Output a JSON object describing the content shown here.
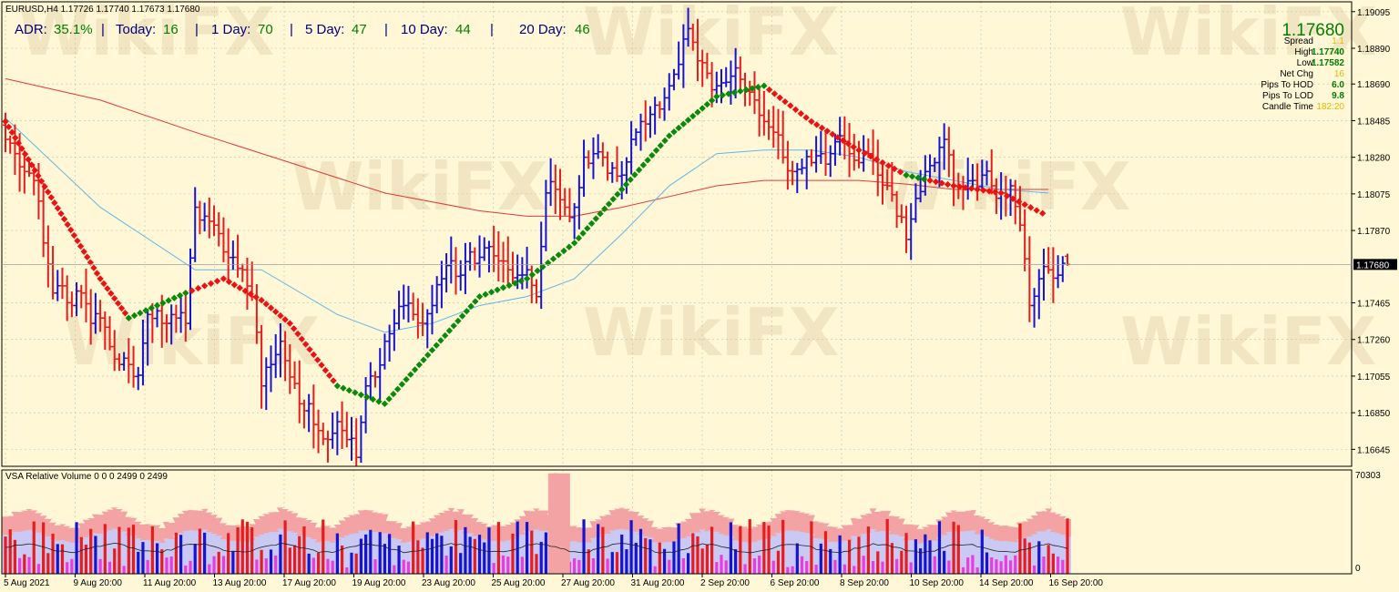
{
  "colors": {
    "background": "#fff7d6",
    "grid": "#c9c0a0",
    "bull": "#1414d2",
    "bear": "#e81c1c",
    "ma_fast": "#5fb8e8",
    "ma_slow": "#e23a3a",
    "trend_up": "#0a8a0a",
    "trend_down": "#ee1111",
    "vol_band_outer": "#f3a3a3",
    "vol_band_inner": "#c9c9f3",
    "vol_ma": "#202020",
    "vol_high_bull": "#1414d2",
    "vol_high_bear": "#e81c1c",
    "vol_low": "#e83ce0",
    "adr_label": "#000080",
    "adr_value": "#008000",
    "info_label": "#000000",
    "info_green": "#008000",
    "info_gold": "#e6b800"
  },
  "header": {
    "symbol_ohlc": "EURUSD,H4  1.17726 1.17740 1.17673 1.17680"
  },
  "adr_bar": {
    "adr_label": "ADR:",
    "adr_value": "35.1%",
    "sep1": "|",
    "today_label": "Today:",
    "today_value": "16",
    "sep2": "|",
    "day1_label": "1 Day:",
    "day1_value": "70",
    "sep3": "|",
    "day5_label": "5 Day:",
    "day5_value": "47",
    "sep4": "|",
    "day10_label": "10 Day:",
    "day10_value": "44",
    "sep5": "|",
    "day20_label": "20 Day:",
    "day20_value": "46"
  },
  "info_panel": {
    "price": "1.17680",
    "spread_label": "Spread",
    "spread_value": "1.1",
    "high_label": "High",
    "high_value": "1.17740",
    "low_label": "Low",
    "low_value": "1.17582",
    "netchg_label": "Net Chg",
    "netchg_value": "16",
    "hod_label": "Pips To HOD",
    "hod_value": "6.0",
    "lod_label": "Pips To LOD",
    "lod_value": "9.8",
    "candle_label": "Candle Time",
    "candle_value": "182:20"
  },
  "watermarks": [
    "WikiFX",
    "WikiFX",
    "WikiFX",
    "WikiFX",
    "WikiFX",
    "WikiFX",
    "WikiFX",
    "WikiFX"
  ],
  "chart_data": [
    {
      "type": "ohlc",
      "symbol": "EURUSD",
      "timeframe": "H4",
      "current_price": 1.1768,
      "current_price_label": "1.17680",
      "ylim": [
        1.1655,
        1.1915
      ],
      "y_ticks": [
        1.19095,
        1.1889,
        1.1869,
        1.18485,
        1.1828,
        1.18075,
        1.1787,
        1.1768,
        1.17465,
        1.1726,
        1.17055,
        1.1685,
        1.16645
      ],
      "y_tick_labels": [
        "1.19095",
        "1.18890",
        "1.18690",
        "1.18485",
        "1.18280",
        "1.18075",
        "1.17870",
        "1.17680",
        "1.17465",
        "1.17260",
        "1.17055",
        "1.16850",
        "1.16645"
      ],
      "x_tick_labels": [
        "5 Aug 2021",
        "9 Aug 20:00",
        "11 Aug 20:00",
        "13 Aug 20:00",
        "17 Aug 20:00",
        "19 Aug 20:00",
        "23 Aug 20:00",
        "25 Aug 20:00",
        "27 Aug 20:00",
        "31 Aug 20:00",
        "2 Sep 20:00",
        "6 Sep 20:00",
        "8 Sep 20:00",
        "10 Sep 20:00",
        "14 Sep 20:00",
        "16 Sep 20:00"
      ],
      "anchor_closes": [
        1.1838,
        1.183,
        1.182,
        1.1815,
        1.178,
        1.1752,
        1.1756,
        1.1745,
        1.1752,
        1.1735,
        1.1738,
        1.1722,
        1.1712,
        1.1712,
        1.1706,
        1.174,
        1.1742,
        1.1735,
        1.1738,
        1.1735,
        1.18,
        1.1795,
        1.179,
        1.1775,
        1.1772,
        1.1765,
        1.175,
        1.17,
        1.1712,
        1.1725,
        1.1705,
        1.169,
        1.169,
        1.1675,
        1.167,
        1.168,
        1.167,
        1.166,
        1.17,
        1.1705,
        1.1725,
        1.1735,
        1.1745,
        1.174,
        1.1735,
        1.1745,
        1.176,
        1.177,
        1.1762,
        1.1775,
        1.1772,
        1.1778,
        1.177,
        1.1765,
        1.1762,
        1.1765,
        1.175,
        1.1808,
        1.181,
        1.18,
        1.18,
        1.1828,
        1.183,
        1.1828,
        1.1822,
        1.1818,
        1.1838,
        1.1848,
        1.1852,
        1.1855,
        1.1868,
        1.188,
        1.19,
        1.1882,
        1.1875,
        1.1868,
        1.187,
        1.1878,
        1.1865,
        1.186,
        1.1848,
        1.1842,
        1.1828,
        1.182,
        1.1822,
        1.1825,
        1.183,
        1.183,
        1.184,
        1.183,
        1.1825,
        1.183,
        1.1818,
        1.1812,
        1.1795,
        1.1782,
        1.1805,
        1.182,
        1.1825,
        1.1838,
        1.1812,
        1.181,
        1.1815,
        1.1818,
        1.1812,
        1.1808,
        1.1812,
        1.179,
        1.1745,
        1.176,
        1.1765,
        1.1762,
        1.1768
      ],
      "trend_line": {
        "x_idx": [
          0,
          10,
          13,
          19,
          23,
          27,
          30,
          35,
          40,
          45,
          50,
          55,
          60,
          65,
          70,
          75,
          80,
          85,
          90,
          95,
          100,
          105,
          110
        ],
        "y": [
          1.1848,
          1.176,
          1.1738,
          1.1752,
          1.176,
          1.1748,
          1.1735,
          1.17,
          1.169,
          1.172,
          1.175,
          1.176,
          1.178,
          1.181,
          1.184,
          1.1862,
          1.1868,
          1.1848,
          1.1832,
          1.1818,
          1.1812,
          1.1808,
          1.1795
        ],
        "up_segments": [
          [
            13,
            19
          ],
          [
            35,
            80
          ],
          [
            95,
            97
          ]
        ]
      },
      "ma_fast": {
        "x_idx": [
          0,
          10,
          20,
          27,
          35,
          40,
          45,
          50,
          55,
          60,
          65,
          70,
          75,
          80,
          85,
          90,
          95,
          100,
          105,
          110
        ],
        "y": [
          1.185,
          1.18,
          1.1765,
          1.1765,
          1.174,
          1.173,
          1.1735,
          1.1745,
          1.175,
          1.176,
          1.1785,
          1.1812,
          1.183,
          1.1832,
          1.1832,
          1.1828,
          1.182,
          1.1815,
          1.181,
          1.1808
        ]
      },
      "ma_slow": {
        "x_idx": [
          0,
          10,
          20,
          30,
          40,
          50,
          55,
          60,
          65,
          70,
          75,
          80,
          85,
          90,
          95,
          100,
          105,
          110
        ],
        "y": [
          1.1872,
          1.186,
          1.1842,
          1.1825,
          1.1808,
          1.1798,
          1.1795,
          1.1795,
          1.18,
          1.1806,
          1.1812,
          1.1815,
          1.1815,
          1.1815,
          1.1813,
          1.181,
          1.181,
          1.181
        ]
      }
    },
    {
      "type": "bar",
      "title": "VSA Relative Volume 0 0 0 2499 0 2499",
      "y_max_label": "70303",
      "y_min_label": "0",
      "ylim": [
        0,
        70303
      ],
      "spike_indices": [
        58
      ],
      "spike_value": 68000
    }
  ]
}
